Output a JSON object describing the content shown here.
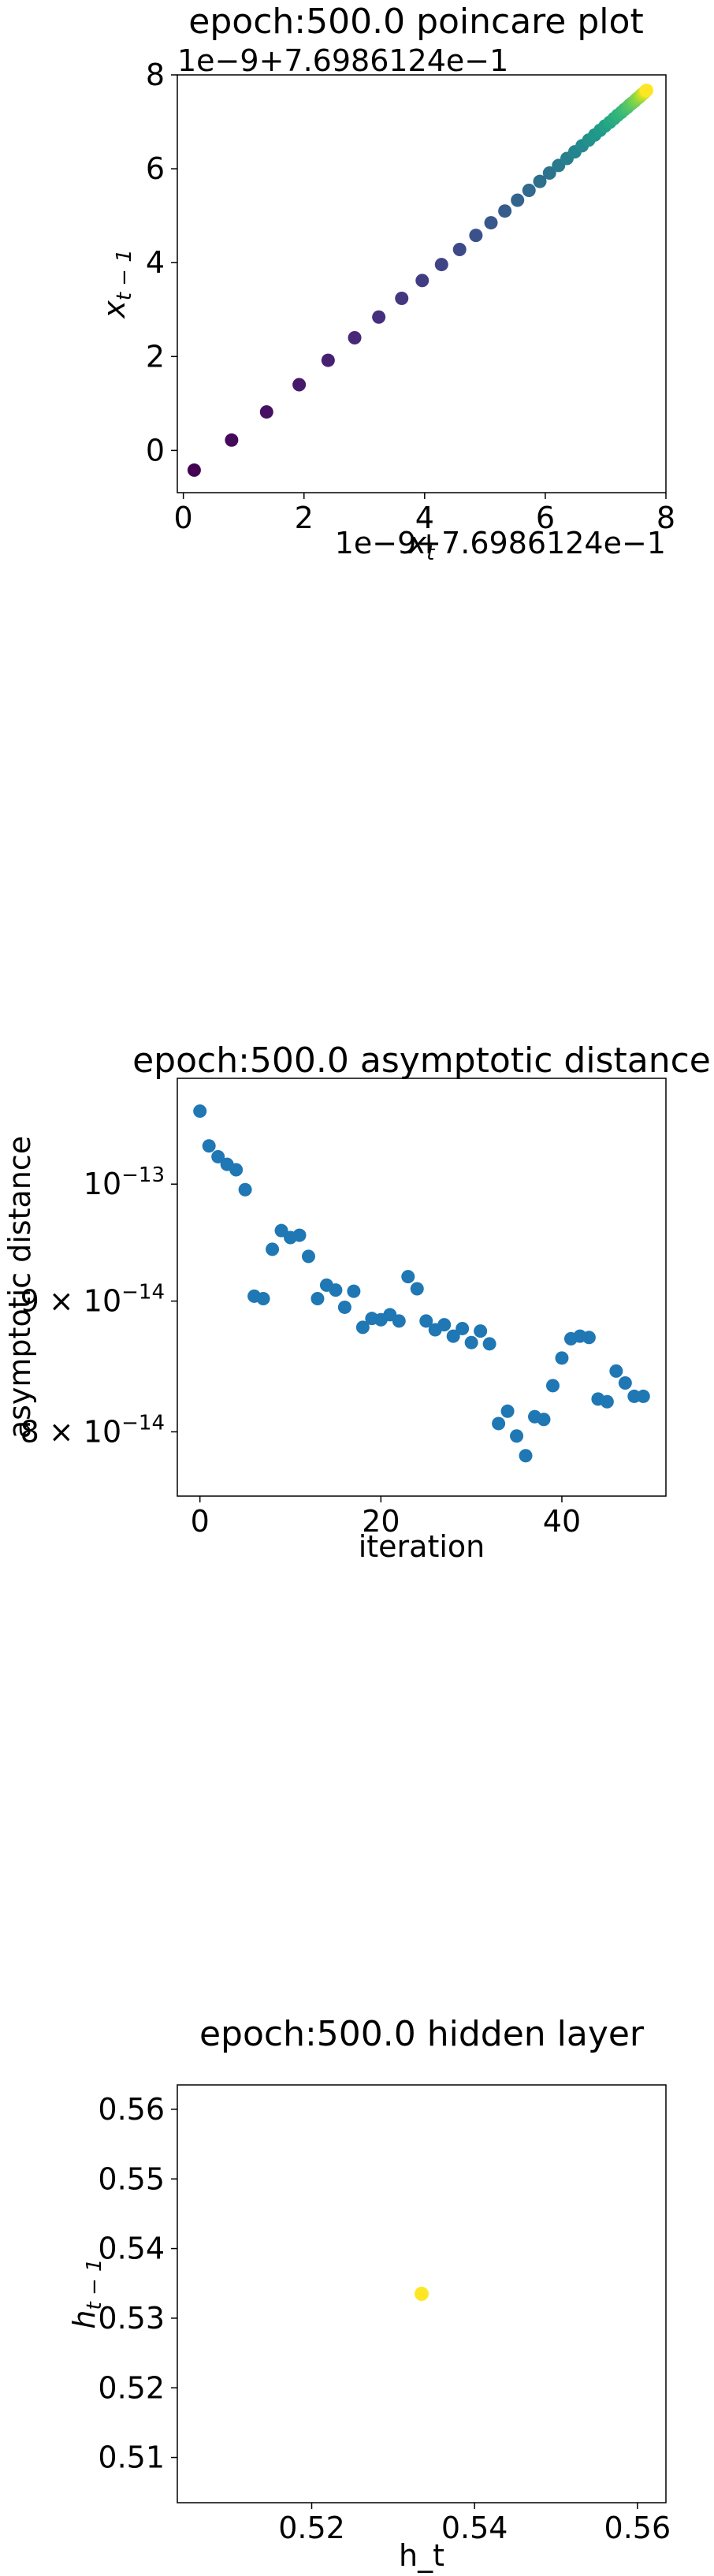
{
  "chart_data": [
    {
      "type": "scatter",
      "title": "epoch:500.0 poincare plot",
      "xlabel": "x_t",
      "ylabel": "x_{t-1}",
      "offset_text_y": "1e−9+7.6986124e−1",
      "offset_text_x": "1e−9+7.6986124e−1",
      "xlim": [
        -0.1,
        8.0
      ],
      "ylim": [
        -0.9,
        8.0
      ],
      "xticks": [
        0,
        2,
        4,
        6,
        8
      ],
      "yticks": [
        0,
        2,
        4,
        6,
        8
      ],
      "colormap": "viridis",
      "colormap_stops": [
        "#440154",
        "#482878",
        "#3e4989",
        "#31688e",
        "#26828e",
        "#1f9e89",
        "#35b779",
        "#6ece58",
        "#b5de2b",
        "#fde725"
      ],
      "points": [
        [
          0.18,
          -0.42
        ],
        [
          0.8,
          0.22
        ],
        [
          1.38,
          0.82
        ],
        [
          1.92,
          1.4
        ],
        [
          2.4,
          1.92
        ],
        [
          2.84,
          2.4
        ],
        [
          3.24,
          2.84
        ],
        [
          3.62,
          3.24
        ],
        [
          3.96,
          3.62
        ],
        [
          4.28,
          3.96
        ],
        [
          4.58,
          4.28
        ],
        [
          4.85,
          4.58
        ],
        [
          5.1,
          4.85
        ],
        [
          5.33,
          5.1
        ],
        [
          5.54,
          5.33
        ],
        [
          5.73,
          5.54
        ],
        [
          5.91,
          5.73
        ],
        [
          6.07,
          5.91
        ],
        [
          6.22,
          6.07
        ],
        [
          6.36,
          6.22
        ],
        [
          6.49,
          6.36
        ],
        [
          6.61,
          6.49
        ],
        [
          6.72,
          6.61
        ],
        [
          6.82,
          6.72
        ],
        [
          6.91,
          6.82
        ],
        [
          6.99,
          6.91
        ],
        [
          7.07,
          6.99
        ],
        [
          7.14,
          7.07
        ],
        [
          7.2,
          7.14
        ],
        [
          7.26,
          7.2
        ],
        [
          7.31,
          7.26
        ],
        [
          7.36,
          7.31
        ],
        [
          7.4,
          7.36
        ],
        [
          7.44,
          7.4
        ],
        [
          7.48,
          7.44
        ],
        [
          7.51,
          7.48
        ],
        [
          7.54,
          7.51
        ],
        [
          7.57,
          7.54
        ],
        [
          7.59,
          7.57
        ],
        [
          7.61,
          7.59
        ],
        [
          7.63,
          7.61
        ],
        [
          7.65,
          7.63
        ],
        [
          7.66,
          7.65
        ],
        [
          7.67,
          7.66
        ],
        [
          7.68,
          7.67
        ]
      ]
    },
    {
      "type": "scatter",
      "title": "epoch:500.0 asymptotic distance",
      "xlabel": "iteration",
      "ylabel": "asymptotic distance",
      "yscale": "log",
      "xlim": [
        -2.5,
        51.5
      ],
      "ylim": [
        7.55e-14,
        1.1e-13
      ],
      "xticks": [
        0,
        20,
        40
      ],
      "yticks": [
        {
          "value": 1e-13,
          "mantissa": "",
          "exponent": "−13"
        },
        {
          "value": 9e-14,
          "mantissa": "9",
          "exponent": "−14"
        },
        {
          "value": 8e-14,
          "mantissa": "8",
          "exponent": "−14"
        }
      ],
      "color": "#1f77b4",
      "x": [
        0,
        1,
        2,
        3,
        4,
        5,
        6,
        7,
        8,
        9,
        10,
        11,
        12,
        13,
        14,
        15,
        16,
        17,
        18,
        19,
        20,
        21,
        22,
        23,
        24,
        25,
        26,
        27,
        28,
        29,
        30,
        31,
        32,
        33,
        34,
        35,
        36,
        37,
        38,
        39,
        40,
        41,
        42,
        43,
        44,
        45,
        46,
        47,
        48,
        49
      ],
      "y": [
        1.068e-13,
        1.035e-13,
        1.025e-13,
        1.018e-13,
        1.013e-13,
        9.95e-14,
        9.04e-14,
        9.02e-14,
        9.43e-14,
        9.59e-14,
        9.53e-14,
        9.55e-14,
        9.37e-14,
        9.02e-14,
        9.13e-14,
        9.09e-14,
        8.95e-14,
        9.08e-14,
        8.79e-14,
        8.86e-14,
        8.85e-14,
        8.89e-14,
        8.84e-14,
        9.2e-14,
        9.1e-14,
        8.84e-14,
        8.77e-14,
        8.81e-14,
        8.72e-14,
        8.78e-14,
        8.67e-14,
        8.76e-14,
        8.66e-14,
        8.06e-14,
        8.15e-14,
        7.97e-14,
        7.83e-14,
        8.11e-14,
        8.09e-14,
        8.34e-14,
        8.55e-14,
        8.7e-14,
        8.72e-14,
        8.71e-14,
        8.24e-14,
        8.22e-14,
        8.45e-14,
        8.36e-14,
        8.26e-14,
        8.26e-14
      ]
    },
    {
      "type": "scatter",
      "title": "epoch:500.0 hidden layer",
      "xlabel": "h_t",
      "ylabel": "h_{t-1}",
      "xlim": [
        0.5035,
        0.5635
      ],
      "ylim": [
        0.5035,
        0.5635
      ],
      "xticks": [
        0.52,
        0.54,
        0.56
      ],
      "yticks": [
        0.51,
        0.52,
        0.53,
        0.54,
        0.55,
        0.56
      ],
      "color": "#fde725",
      "points": [
        [
          0.5335,
          0.5335
        ]
      ]
    }
  ]
}
